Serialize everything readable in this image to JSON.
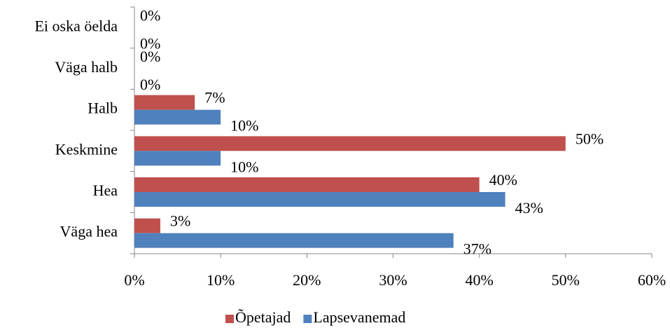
{
  "chart_data": {
    "type": "bar",
    "orientation": "horizontal",
    "categories": [
      "Ei oska öelda",
      "Väga halb",
      "Halb",
      "Keskmine",
      "Hea",
      "Väga hea"
    ],
    "series": [
      {
        "name": "Õpetajad",
        "color": "#c0504d",
        "values": [
          0,
          0,
          7,
          50,
          40,
          3
        ],
        "value_labels": [
          "0%",
          "0%",
          "7%",
          "50%",
          "40%",
          "3%"
        ]
      },
      {
        "name": "Lapsevanemad",
        "color": "#4f81bd",
        "values": [
          0,
          0,
          10,
          10,
          43,
          37
        ],
        "value_labels": [
          "0%",
          "0%",
          "10%",
          "10%",
          "43%",
          "37%"
        ]
      }
    ],
    "xlim": [
      0,
      60
    ],
    "xticks": [
      {
        "value": 0,
        "label": "0%"
      },
      {
        "value": 10,
        "label": "10%"
      },
      {
        "value": 20,
        "label": "20%"
      },
      {
        "value": 30,
        "label": "30%"
      },
      {
        "value": 40,
        "label": "40%"
      },
      {
        "value": 50,
        "label": "50%"
      },
      {
        "value": 60,
        "label": "60%"
      }
    ],
    "grid": false,
    "legend": "bottom"
  }
}
